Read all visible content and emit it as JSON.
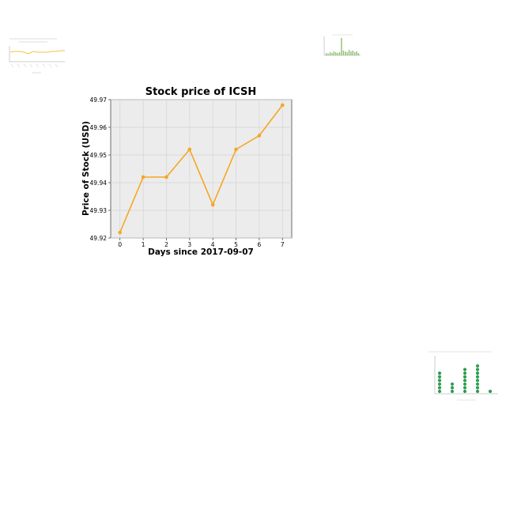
{
  "chart_data": [
    {
      "type": "line",
      "title": "Stock price of ICSH",
      "xlabel": "Days since 2017-09-07",
      "ylabel": "Price of Stock (USD)",
      "x": [
        0,
        1,
        2,
        3,
        4,
        5,
        6,
        7
      ],
      "series": [
        {
          "values": [
            49.922,
            49.942,
            49.942,
            49.952,
            49.932,
            49.952,
            49.957,
            49.968
          ]
        }
      ],
      "x_ticks": [
        "0",
        "1",
        "2",
        "3",
        "4",
        "5",
        "6",
        "7"
      ],
      "y_ticks": [
        "49.92",
        "49.93",
        "49.94",
        "49.95",
        "49.96",
        "49.97"
      ],
      "ylim": [
        49.92,
        49.97
      ],
      "xlim": [
        -0.4,
        7.4
      ],
      "grid": true,
      "line_color": "#f5a623",
      "plot_background": "#ececec",
      "grid_color": "#d4d4d4"
    },
    {
      "type": "line",
      "title": "",
      "line_color": "#f5c242"
    },
    {
      "type": "bar",
      "title": "",
      "bar_color": "#8fbf6f"
    },
    {
      "type": "scatter",
      "title": "",
      "marker_color": "#2e9e4f"
    }
  ]
}
